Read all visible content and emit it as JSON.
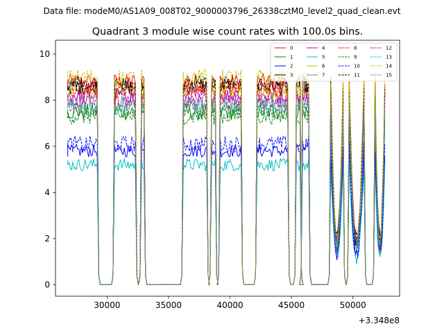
{
  "figure": {
    "suptitle": "Data file: modeM0/AS1A09_008T02_9000003796_26338cztM0_level2_quad_clean.evt"
  },
  "chart_data": {
    "type": "line",
    "title": "Quadrant 3 module wise count rates with 100.0s bins.",
    "xlabel": "",
    "ylabel": "",
    "x_offset_label": "+3.348e8",
    "xlim": [
      25800,
      53800
    ],
    "ylim": [
      -0.5,
      10.6
    ],
    "xticks": [
      30000,
      35000,
      40000,
      45000,
      50000
    ],
    "xtick_labels": [
      "30000",
      "35000",
      "40000",
      "45000",
      "50000"
    ],
    "yticks": [
      0,
      2,
      4,
      6,
      8,
      10
    ],
    "ytick_labels": [
      "0",
      "2",
      "4",
      "6",
      "8",
      "10"
    ],
    "legend_position": "top-right",
    "segments": [
      {
        "start": 26800,
        "end": 29200,
        "shape": "flat"
      },
      {
        "start": 30600,
        "end": 32300,
        "shape": "flat"
      },
      {
        "start": 32800,
        "end": 33000,
        "shape": "flat"
      },
      {
        "start": 36200,
        "end": 38100,
        "shape": "flat"
      },
      {
        "start": 38500,
        "end": 38800,
        "shape": "flat"
      },
      {
        "start": 39200,
        "end": 40900,
        "shape": "flat"
      },
      {
        "start": 42200,
        "end": 44700,
        "shape": "flat"
      },
      {
        "start": 45400,
        "end": 45700,
        "shape": "flat"
      },
      {
        "start": 45900,
        "end": 46400,
        "shape": "flat"
      },
      {
        "start": 48200,
        "end": 49200,
        "shape": "dip"
      },
      {
        "start": 49700,
        "end": 50900,
        "shape": "dip"
      },
      {
        "start": 51800,
        "end": 52600,
        "shape": "dip"
      }
    ],
    "series": [
      {
        "name": "0",
        "color": "#ff0000",
        "dashed": false,
        "level": 8.8
      },
      {
        "name": "1",
        "color": "#008000",
        "dashed": false,
        "level": 7.5
      },
      {
        "name": "2",
        "color": "#0000ff",
        "dashed": false,
        "level": 5.8
      },
      {
        "name": "3",
        "color": "#000000",
        "dashed": false,
        "level": 8.6
      },
      {
        "name": "4",
        "color": "#bf00bf",
        "dashed": false,
        "level": 8.2
      },
      {
        "name": "5",
        "color": "#00bfbf",
        "dashed": false,
        "level": 5.2
      },
      {
        "name": "6",
        "color": "#bfbf00",
        "dashed": false,
        "level": 8.4
      },
      {
        "name": "7",
        "color": "#808080",
        "dashed": false,
        "level": 7.9
      },
      {
        "name": "8",
        "color": "#ff0000",
        "dashed": true,
        "level": 8.5
      },
      {
        "name": "9",
        "color": "#008000",
        "dashed": true,
        "level": 7.3
      },
      {
        "name": "10",
        "color": "#0000ff",
        "dashed": true,
        "level": 6.1
      },
      {
        "name": "11",
        "color": "#000000",
        "dashed": true,
        "level": 8.7
      },
      {
        "name": "12",
        "color": "#bf00bf",
        "dashed": true,
        "level": 8.0
      },
      {
        "name": "13",
        "color": "#00bfbf",
        "dashed": true,
        "level": 7.7
      },
      {
        "name": "14",
        "color": "#bfbf00",
        "dashed": true,
        "level": 9.0
      },
      {
        "name": "15",
        "color": "#808080",
        "dashed": true,
        "level": 7.6
      }
    ]
  }
}
